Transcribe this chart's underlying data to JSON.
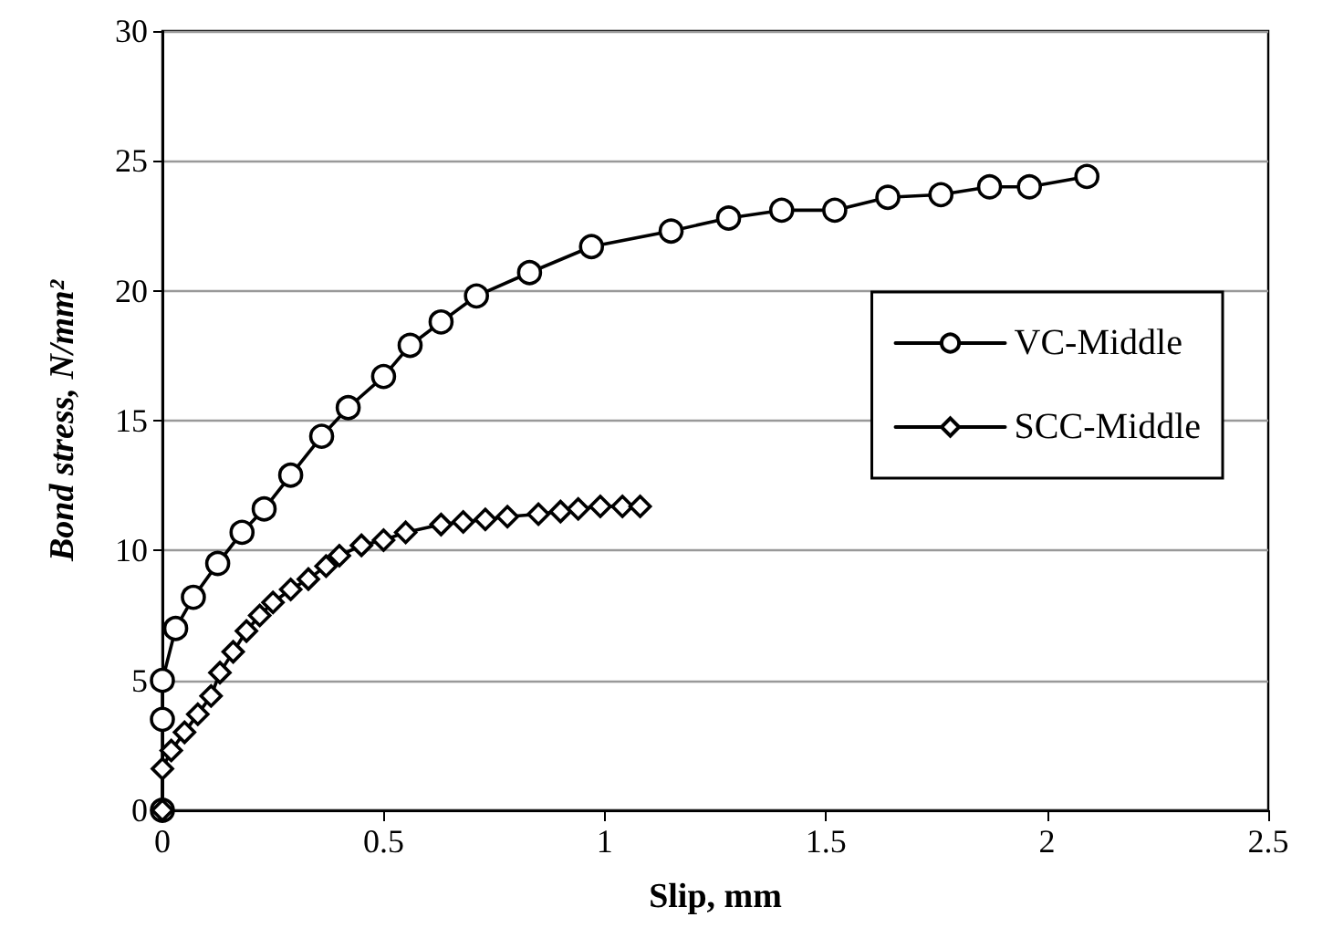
{
  "chart_data": {
    "type": "line",
    "xlabel": "Slip, mm",
    "ylabel": "Bond stress, N/mm²",
    "xlim": [
      0,
      2.5
    ],
    "xticks": [
      0,
      0.5,
      1,
      1.5,
      2,
      2.5
    ],
    "ylim": [
      0,
      30
    ],
    "yticks": [
      0,
      5,
      10,
      15,
      20,
      25,
      30
    ],
    "grid": "y",
    "legend": "right",
    "line_style": "solid",
    "series": [
      {
        "name": "VC-Middle",
        "color": "#000000",
        "marker": "circle",
        "x": [
          0,
          0,
          0,
          0.03,
          0.07,
          0.125,
          0.18,
          0.23,
          0.29,
          0.36,
          0.42,
          0.5,
          0.56,
          0.63,
          0.71,
          0.83,
          0.97,
          1.15,
          1.28,
          1.4,
          1.52,
          1.64,
          1.76,
          1.87,
          1.96,
          2.09
        ],
        "values": [
          0,
          3.5,
          5.0,
          7.0,
          8.2,
          9.5,
          10.7,
          11.6,
          12.9,
          14.4,
          15.5,
          16.7,
          17.9,
          18.8,
          19.8,
          20.7,
          21.7,
          22.3,
          22.8,
          23.1,
          23.1,
          23.6,
          23.7,
          24.0,
          24.0,
          24.4
        ]
      },
      {
        "name": "SCC-Middle",
        "color": "#000000",
        "marker": "diamond",
        "x": [
          0,
          0,
          0.02,
          0.05,
          0.08,
          0.11,
          0.13,
          0.16,
          0.19,
          0.22,
          0.25,
          0.29,
          0.33,
          0.37,
          0.4,
          0.45,
          0.5,
          0.55,
          0.63,
          0.68,
          0.73,
          0.78,
          0.85,
          0.9,
          0.94,
          0.99,
          1.04,
          1.08
        ],
        "values": [
          0,
          1.6,
          2.3,
          3.0,
          3.7,
          4.4,
          5.3,
          6.1,
          6.9,
          7.5,
          8.0,
          8.5,
          8.9,
          9.4,
          9.8,
          10.2,
          10.4,
          10.7,
          11.0,
          11.1,
          11.2,
          11.3,
          11.4,
          11.5,
          11.6,
          11.7,
          11.7,
          11.7
        ]
      }
    ]
  }
}
